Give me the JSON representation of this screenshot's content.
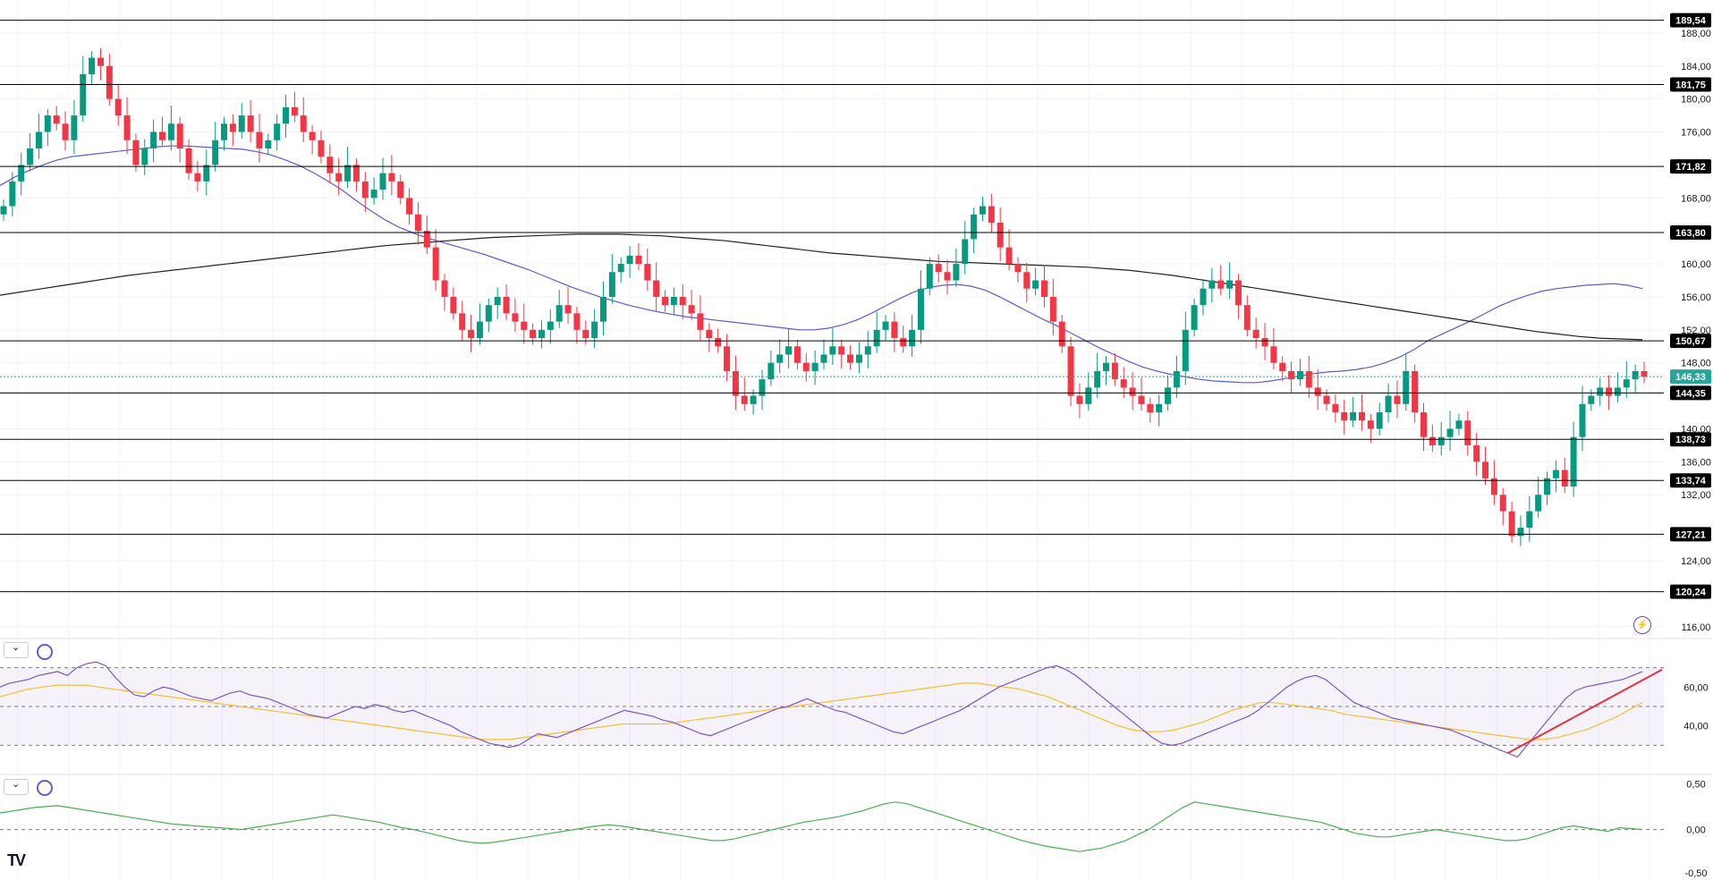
{
  "chart_data": {
    "type": "candlestick",
    "price_axis": {
      "ylim": [
        115.0,
        192.0
      ],
      "ticks": [
        "188,00",
        "184,00",
        "180,00",
        "176,00",
        "168,00",
        "160,00",
        "156,00",
        "152,00",
        "148,00",
        "140,00",
        "136,00",
        "132,00",
        "124,00",
        "116,00"
      ],
      "tick_values": [
        188,
        184,
        180,
        176,
        168,
        160,
        156,
        152,
        148,
        140,
        136,
        132,
        124,
        116
      ]
    },
    "levels": [
      {
        "label": "189,54",
        "value": 189.54
      },
      {
        "label": "181,75",
        "value": 181.75
      },
      {
        "label": "171,82",
        "value": 171.82
      },
      {
        "label": "163,80",
        "value": 163.8
      },
      {
        "label": "150,67",
        "value": 150.67
      },
      {
        "label": "144,35",
        "value": 144.35
      },
      {
        "label": "138,73",
        "value": 138.73
      },
      {
        "label": "133,74",
        "value": 133.74
      },
      {
        "label": "127,21",
        "value": 127.21
      },
      {
        "label": "120,24",
        "value": 120.24
      }
    ],
    "last_price": {
      "label": "146,33",
      "value": 146.33
    },
    "colors": {
      "up": "#089981",
      "down": "#f23645",
      "ma_fast": "#5b5bd6",
      "ma_slow": "#222222",
      "level": "#000000",
      "rsi": "#7e57c2",
      "rsi_ma": "#f5c02b",
      "macd": "#4caf50",
      "trend": "#e0333c",
      "last_price": "#26a69a"
    },
    "closes": [
      167,
      170,
      172,
      174,
      176,
      178,
      177,
      175,
      178,
      183,
      185,
      184,
      180,
      178,
      175,
      172,
      174,
      176,
      175,
      177,
      174,
      171,
      170,
      172,
      175,
      177,
      176,
      178,
      176,
      174,
      175,
      177,
      179,
      178,
      176,
      175,
      173,
      171,
      170,
      172,
      170,
      168,
      169,
      171,
      170,
      168,
      166,
      164,
      162,
      158,
      156,
      154,
      152,
      151,
      153,
      155,
      156,
      154,
      153,
      152,
      151,
      152,
      153,
      155,
      154,
      152,
      151,
      153,
      156,
      159,
      160,
      161,
      160,
      158,
      156,
      155,
      156,
      155,
      154,
      152,
      151,
      150,
      147,
      144,
      143,
      144,
      146,
      148,
      149,
      150,
      148,
      147,
      148,
      149,
      150,
      149,
      148,
      149,
      150,
      152,
      153,
      151,
      150,
      152,
      157,
      160,
      159,
      158,
      160,
      163,
      166,
      167,
      165,
      162,
      160,
      159,
      157,
      158,
      156,
      153,
      150,
      144,
      143,
      145,
      147,
      148,
      146,
      145,
      144,
      143,
      142,
      143,
      145,
      147,
      152,
      155,
      157,
      158,
      157,
      158,
      155,
      152,
      151,
      150,
      148,
      147,
      146,
      147,
      145,
      144,
      143,
      142,
      141,
      142,
      141,
      140,
      142,
      144,
      143,
      147,
      142,
      139,
      138,
      139,
      140,
      141,
      138,
      136,
      134,
      132,
      130,
      127,
      128,
      130,
      132,
      134,
      135,
      133,
      139,
      143,
      144,
      145,
      144,
      145,
      146,
      147,
      146.33
    ],
    "ma_fast": [
      169.5,
      170.5,
      171.3,
      172,
      172.6,
      173,
      173.2,
      173.4,
      173.6,
      173.8,
      174,
      174.2,
      174.3,
      174.3,
      174.2,
      174.1,
      174,
      173.9,
      173.6,
      173.2,
      172.6,
      171.9,
      171,
      170,
      168.9,
      167.6,
      166.4,
      165.3,
      164.4,
      163.7,
      163.1,
      162.6,
      162.1,
      161.6,
      161.1,
      160.5,
      159.9,
      159.3,
      158.6,
      157.9,
      157.2,
      156.6,
      156,
      155.5,
      155,
      154.6,
      154.2,
      153.9,
      153.6,
      153.4,
      153.2,
      153,
      152.8,
      152.6,
      152.4,
      152.2,
      152,
      152,
      152.2,
      152.6,
      153.2,
      154,
      154.9,
      155.8,
      156.6,
      157.1,
      157.4,
      157.5,
      157.3,
      156.8,
      156,
      155.1,
      154.2,
      153.3,
      152.5,
      151.6,
      150.7,
      149.8,
      149,
      148.2,
      147.5,
      147,
      146.6,
      146.3,
      146,
      145.8,
      145.7,
      145.6,
      145.6,
      145.8,
      146.1,
      146.4,
      146.7,
      146.9,
      147,
      147.2,
      147.5,
      148,
      148.7,
      149.6,
      150.7,
      151.5,
      152.3,
      153.1,
      154,
      154.9,
      155.6,
      156.2,
      156.7,
      157,
      157.2,
      157.4,
      157.5,
      157.6,
      157.4,
      157
    ],
    "ma_slow": [
      156.2,
      156.6,
      157,
      157.4,
      157.8,
      158.2,
      158.6,
      158.9,
      159.2,
      159.5,
      159.8,
      160.1,
      160.4,
      160.7,
      161,
      161.3,
      161.6,
      161.9,
      162.2,
      162.4,
      162.6,
      162.8,
      163,
      163.2,
      163.3,
      163.4,
      163.5,
      163.6,
      163.6,
      163.6,
      163.5,
      163.4,
      163.2,
      163,
      162.8,
      162.5,
      162.2,
      161.9,
      161.6,
      161.3,
      161.1,
      160.9,
      160.7,
      160.5,
      160.3,
      160.2,
      160.1,
      160,
      159.9,
      159.8,
      159.7,
      159.6,
      159.4,
      159.2,
      158.9,
      158.6,
      158.2,
      157.8,
      157.4,
      157,
      156.6,
      156.2,
      155.8,
      155.4,
      155,
      154.6,
      154.2,
      153.8,
      153.4,
      153,
      152.6,
      152.2,
      151.8,
      151.5,
      151.2,
      151,
      150.9,
      150.8
    ],
    "rsi_axis": {
      "ticks": [
        "60,00",
        "40,00"
      ],
      "tick_values": [
        60,
        40
      ],
      "ylim": [
        15,
        85
      ],
      "bands": [
        70,
        50,
        30
      ]
    },
    "rsi": [
      60,
      62,
      63,
      64,
      66,
      67,
      68,
      66,
      70,
      72,
      73,
      71,
      65,
      60,
      56,
      55,
      58,
      60,
      59,
      57,
      55,
      54,
      53,
      55,
      57,
      58,
      56,
      55,
      54,
      52,
      50,
      48,
      46,
      45,
      44,
      46,
      48,
      50,
      49,
      51,
      50,
      48,
      47,
      48,
      46,
      44,
      42,
      40,
      37,
      35,
      33,
      31,
      30,
      29,
      30,
      33,
      36,
      35,
      34,
      36,
      38,
      40,
      42,
      44,
      46,
      48,
      47,
      46,
      45,
      43,
      42,
      40,
      38,
      36,
      35,
      37,
      39,
      41,
      43,
      45,
      47,
      49,
      50,
      52,
      54,
      52,
      50,
      48,
      47,
      45,
      43,
      41,
      39,
      37,
      36,
      38,
      40,
      42,
      44,
      46,
      48,
      51,
      54,
      57,
      60,
      62,
      64,
      66,
      68,
      70,
      71,
      69,
      66,
      62,
      58,
      54,
      50,
      46,
      42,
      38,
      34,
      31,
      30,
      31,
      33,
      35,
      37,
      39,
      41,
      43,
      45,
      48,
      52,
      56,
      60,
      63,
      65,
      66,
      64,
      60,
      56,
      52,
      50,
      48,
      46,
      44,
      43,
      42,
      41,
      40,
      39,
      38,
      36,
      34,
      32,
      30,
      28,
      26,
      24,
      30,
      36,
      42,
      48,
      54,
      58,
      60,
      61,
      62,
      63,
      64,
      66,
      68
    ],
    "rsi_ma": [
      55,
      57,
      59,
      60,
      61,
      61,
      61,
      60,
      59,
      58,
      57,
      56,
      55,
      54,
      53,
      52,
      51,
      50,
      49,
      48,
      47,
      46,
      45,
      44,
      43,
      42,
      41,
      40,
      39,
      38,
      37,
      36,
      35,
      34,
      33,
      33,
      33,
      34,
      35,
      36,
      37,
      38,
      39,
      40,
      41,
      41,
      41,
      41,
      42,
      43,
      44,
      45,
      46,
      47,
      48,
      49,
      50,
      51,
      52,
      53,
      54,
      55,
      56,
      57,
      58,
      59,
      60,
      61,
      62,
      62,
      61,
      60,
      59,
      57,
      55,
      52,
      49,
      46,
      43,
      40,
      38,
      37,
      37,
      38,
      40,
      42,
      45,
      48,
      50,
      52,
      52,
      51,
      50,
      49,
      48,
      46,
      45,
      44,
      43,
      42,
      41,
      40,
      39,
      38,
      37,
      36,
      35,
      34,
      33,
      33,
      34,
      36,
      38,
      41,
      44,
      48,
      52
    ],
    "macd_axis": {
      "ticks": [
        "0,50",
        "0,00",
        "-0,50"
      ],
      "tick_values": [
        0.5,
        0,
        -0.5
      ],
      "ylim": [
        -0.55,
        0.6
      ]
    },
    "macd": [
      0.18,
      0.2,
      0.22,
      0.24,
      0.25,
      0.26,
      0.24,
      0.22,
      0.2,
      0.18,
      0.16,
      0.14,
      0.12,
      0.1,
      0.08,
      0.06,
      0.05,
      0.04,
      0.03,
      0.02,
      0.01,
      0,
      0.02,
      0.04,
      0.06,
      0.08,
      0.1,
      0.12,
      0.14,
      0.16,
      0.14,
      0.12,
      0.1,
      0.08,
      0.05,
      0.02,
      0,
      -0.03,
      -0.06,
      -0.09,
      -0.12,
      -0.14,
      -0.15,
      -0.14,
      -0.12,
      -0.1,
      -0.08,
      -0.06,
      -0.04,
      -0.02,
      0,
      0.02,
      0.04,
      0.05,
      0.04,
      0.02,
      0,
      -0.02,
      -0.04,
      -0.06,
      -0.08,
      -0.1,
      -0.12,
      -0.12,
      -0.1,
      -0.07,
      -0.04,
      -0.01,
      0.02,
      0.05,
      0.08,
      0.1,
      0.12,
      0.14,
      0.17,
      0.2,
      0.24,
      0.28,
      0.3,
      0.28,
      0.24,
      0.2,
      0.16,
      0.12,
      0.08,
      0.04,
      0,
      -0.04,
      -0.08,
      -0.12,
      -0.15,
      -0.18,
      -0.2,
      -0.22,
      -0.24,
      -0.22,
      -0.2,
      -0.16,
      -0.12,
      -0.06,
      0,
      0.08,
      0.16,
      0.24,
      0.3,
      0.28,
      0.26,
      0.24,
      0.22,
      0.2,
      0.18,
      0.16,
      0.14,
      0.12,
      0.1,
      0.08,
      0.04,
      0,
      -0.04,
      -0.06,
      -0.08,
      -0.08,
      -0.06,
      -0.04,
      -0.02,
      0,
      -0.02,
      -0.04,
      -0.06,
      -0.08,
      -0.1,
      -0.12,
      -0.12,
      -0.1,
      -0.06,
      -0.02,
      0.02,
      0.04,
      0.02,
      0,
      -0.02,
      0.02,
      0.01,
      0
    ]
  },
  "icons": {
    "collapse_icon": "chevron-down-icon",
    "refresh_icon": "refresh-icon",
    "alert_icon": "lightning-icon",
    "logo": "tradingview-logo"
  },
  "logo_text": "TV"
}
